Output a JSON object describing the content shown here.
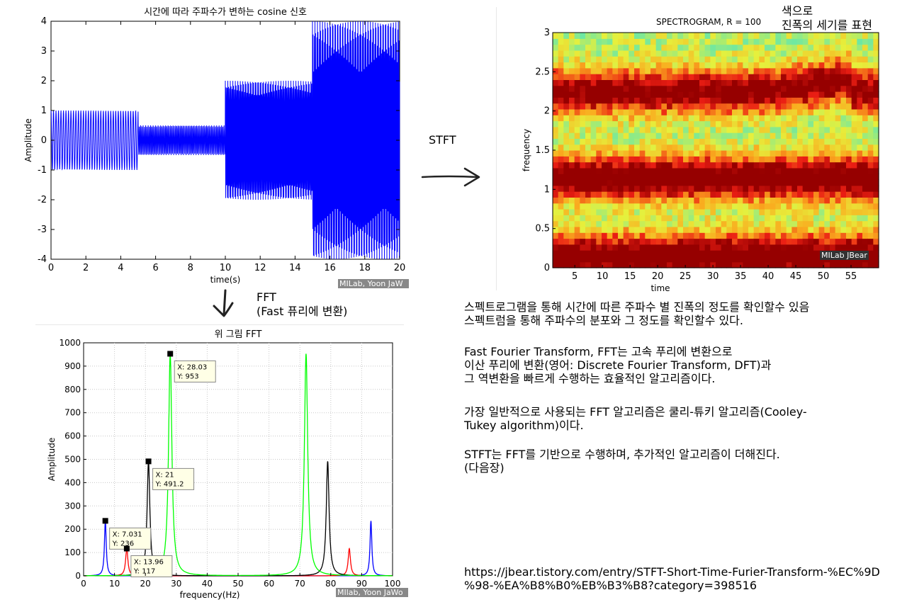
{
  "signal_plot": {
    "title": "시간에 따라 주파수가 변하는 cosine 신호",
    "xlabel": "time(s)",
    "ylabel": "Amplitude",
    "watermark": "MILab, Yoon JaW"
  },
  "spectrogram": {
    "title": "SPECTROGRAM, R = 100",
    "xlabel": "time",
    "ylabel": "frequency",
    "watermark": "MILab JBear",
    "side_note": "색으로\n진폭의 세기를 표현"
  },
  "fft_plot": {
    "title": "위 그림 FFT",
    "xlabel": "frequency(Hz)",
    "ylabel": "Amplitude",
    "watermark": "MIlab, Yoon JaWo"
  },
  "arrows": {
    "stft_label": "STFT",
    "fft_label": "FFT\n(Fast 퓨리에 변환)"
  },
  "notes": {
    "line1": "스펙트로그램을 통해 시간에 따른 주파수 별 진폭의 정도를 확인할수 있음",
    "line2": "스펙트럼을 통해 주파수의 분포와 그 정도를 확인할수 있다.",
    "fft_desc": " Fast Fourier Transform, FFT는 고속 푸리에 변환으로\n이산 푸리에 변환(영어: Discrete Fourier Transform, DFT)과\n그 역변환을 빠르게 수행하는 효율적인 알고리즘이다.",
    "cooley": "가장 일반적으로 사용되는 FFT 알고리즘은 쿨리-튜키 알고리즘(Cooley-\nTukey algorithm)이다.",
    "stft": "STFT는 FFT를 기반으로 수행하며, 추가적인 알고리즘이 더해진다.\n(다음장)",
    "url": "https://jbear.tistory.com/entry/STFT-Short-Time-Furier-Transform-%EC%9D\n%98-%EA%B8%B0%EB%B3%B8?category=398516"
  },
  "chart_data": [
    {
      "type": "line",
      "title": "시간에 따라 주파수가 변하는 cosine 신호",
      "xlabel": "time(s)",
      "ylabel": "Amplitude",
      "xlim": [
        0,
        20
      ],
      "ylim": [
        -4,
        4
      ],
      "xticks": [
        0,
        2,
        4,
        6,
        8,
        10,
        12,
        14,
        16,
        18,
        20
      ],
      "yticks": [
        -4,
        -3,
        -2,
        -1,
        0,
        1,
        2,
        3,
        4
      ],
      "segments": [
        {
          "t_start": 0,
          "t_end": 5,
          "amplitude": 1,
          "freq_hz": 7
        },
        {
          "t_start": 5,
          "t_end": 10,
          "amplitude": 0.5,
          "freq_hz": 14
        },
        {
          "t_start": 10,
          "t_end": 15,
          "amplitude": 2,
          "freq_hz": 21
        },
        {
          "t_start": 15,
          "t_end": 20,
          "amplitude": 4,
          "freq_hz": 28
        }
      ],
      "color": "#0000ff"
    },
    {
      "type": "heatmap",
      "title": "SPECTROGRAM, R = 100",
      "xlabel": "time",
      "ylabel": "frequency",
      "xlim": [
        1,
        60
      ],
      "ylim": [
        0,
        3
      ],
      "xticks": [
        5,
        10,
        15,
        20,
        25,
        30,
        35,
        40,
        45,
        50,
        55
      ],
      "yticks": [
        0,
        0.5,
        1,
        1.5,
        2,
        2.5,
        3
      ],
      "bands": [
        {
          "frequency": 0.15,
          "intensity": 1.0
        },
        {
          "frequency": 1.15,
          "intensity": 1.0
        },
        {
          "frequency": 2.25,
          "intensity": 0.9
        }
      ]
    },
    {
      "type": "line",
      "title": "위 그림 FFT",
      "xlabel": "frequency(Hz)",
      "ylabel": "Amplitude",
      "xlim": [
        0,
        100
      ],
      "ylim": [
        0,
        1000
      ],
      "xticks": [
        0,
        10,
        20,
        30,
        40,
        50,
        60,
        70,
        80,
        90,
        100
      ],
      "yticks": [
        0,
        100,
        200,
        300,
        400,
        500,
        600,
        700,
        800,
        900,
        1000
      ],
      "series": [
        {
          "color": "#0000ff",
          "peaks": [
            {
              "x": 7.031,
              "y": 236
            },
            {
              "x": 93,
              "y": 236
            }
          ]
        },
        {
          "color": "#ff0000",
          "peaks": [
            {
              "x": 13.96,
              "y": 117
            },
            {
              "x": 86,
              "y": 117
            }
          ]
        },
        {
          "color": "#000000",
          "peaks": [
            {
              "x": 21,
              "y": 491.2
            },
            {
              "x": 79,
              "y": 491.2
            }
          ]
        },
        {
          "color": "#00ff00",
          "peaks": [
            {
              "x": 28.03,
              "y": 953
            },
            {
              "x": 72,
              "y": 953
            }
          ]
        }
      ],
      "datatips": [
        {
          "x": 7.031,
          "y": 236,
          "x_text": "X: 7.031",
          "y_text": "Y: 236"
        },
        {
          "x": 13.96,
          "y": 117,
          "x_text": "X: 13.96",
          "y_text": "Y: 117"
        },
        {
          "x": 21,
          "y": 491.2,
          "x_text": "X: 21",
          "y_text": "Y: 491.2"
        },
        {
          "x": 28.03,
          "y": 953,
          "x_text": "X: 28.03",
          "y_text": "Y: 953"
        }
      ]
    }
  ]
}
